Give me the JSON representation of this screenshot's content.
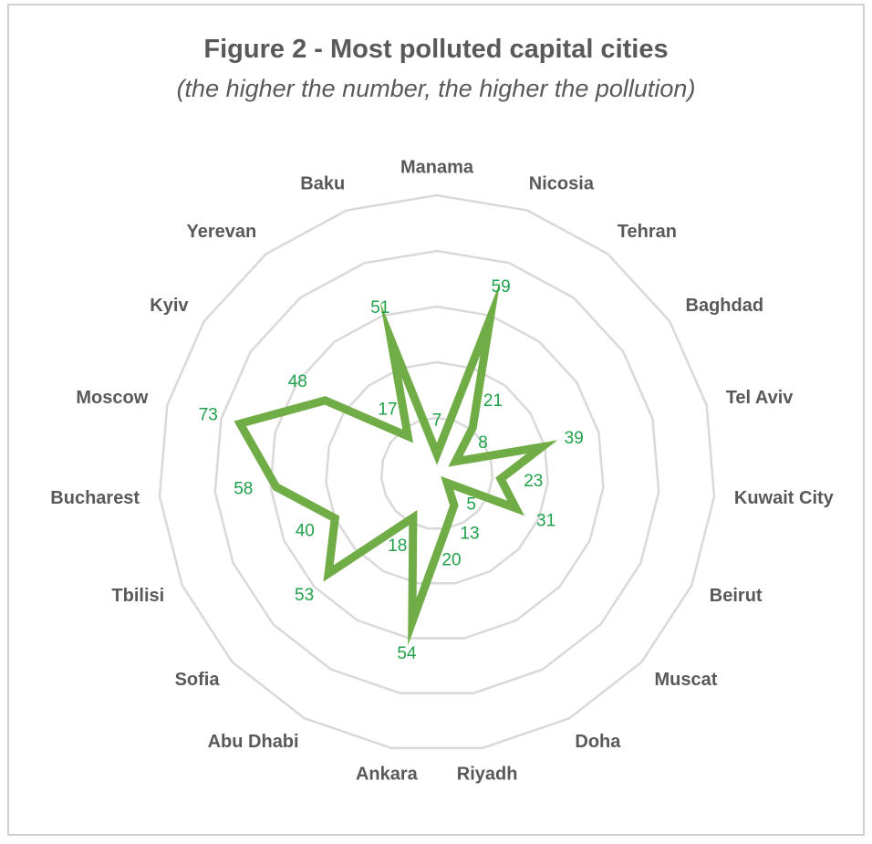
{
  "chart_data": {
    "type": "radar",
    "title": "Figure 2 - Most polluted capital cities",
    "subtitle": "(the higher the number, the higher the pollution)",
    "categories": [
      "Manama",
      "Nicosia",
      "Tehran",
      "Baghdad",
      "Tel Aviv",
      "Kuwait City",
      "Beirut",
      "Muscat",
      "Doha",
      "Riyadh",
      "Ankara",
      "Abu Dhabi",
      "Sofia",
      "Tbilisi",
      "Bucharest",
      "Moscow",
      "Kyiv",
      "Yerevan",
      "Baku"
    ],
    "series": [
      {
        "values": [
          7,
          59,
          21,
          8,
          39,
          23,
          31,
          5,
          13,
          20,
          54,
          18,
          53,
          40,
          58,
          73,
          48,
          17,
          51
        ]
      }
    ],
    "rlim": [
      0,
      100
    ],
    "rings": 5,
    "grid": true,
    "legend": "none",
    "colors": {
      "series": "#70ad47",
      "value_labels": "#1fa14a",
      "grid": "#d9d9d9",
      "text": "#595959"
    }
  }
}
